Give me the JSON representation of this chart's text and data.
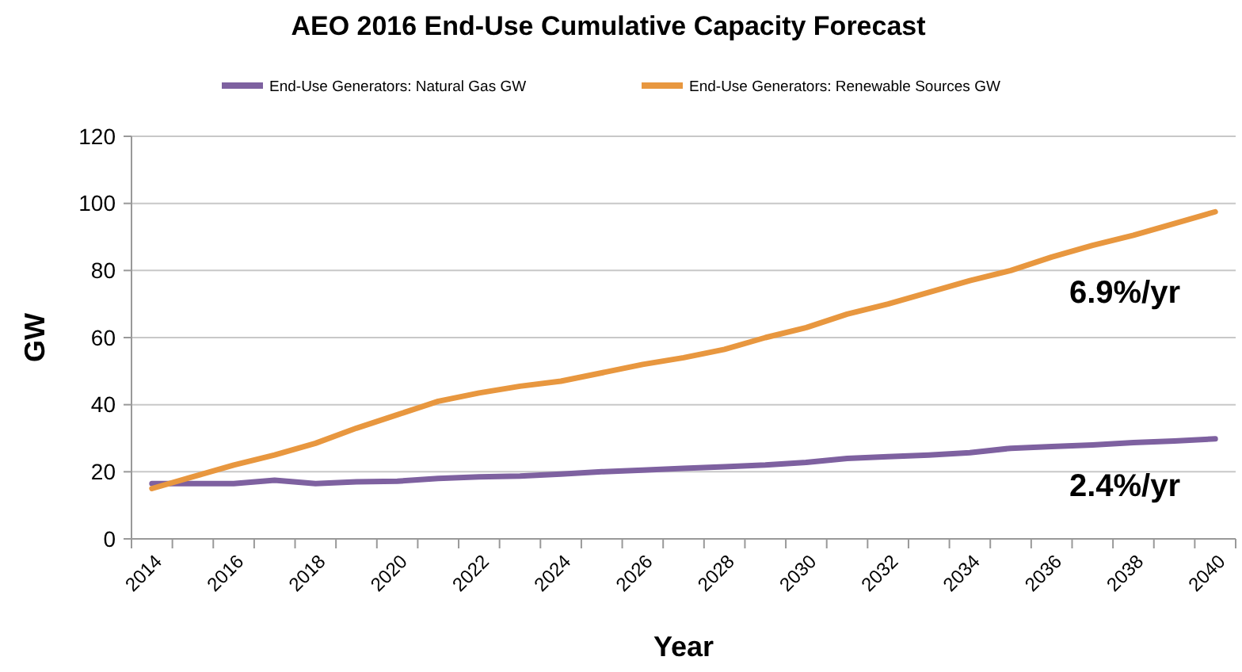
{
  "chart_data": {
    "type": "line",
    "title": "AEO 2016 End-Use Cumulative Capacity Forecast",
    "xlabel": "Year",
    "ylabel": "GW",
    "categories": [
      "2014",
      null,
      "2016",
      null,
      "2018",
      null,
      "2020",
      null,
      "2022",
      null,
      "2024",
      null,
      "2026",
      null,
      "2028",
      null,
      "2030",
      null,
      "2032",
      null,
      "2034",
      null,
      "2036",
      null,
      "2038",
      null,
      "2040"
    ],
    "series": [
      {
        "name": "End-Use Generators: Natural Gas GW",
        "color": "#7e61a0",
        "values": [
          16.5,
          16.5,
          16.5,
          17.5,
          16.5,
          17,
          17.2,
          18,
          18.5,
          18.7,
          19.3,
          20,
          20.5,
          21,
          21.5,
          22,
          22.8,
          24,
          24.5,
          25,
          25.7,
          27,
          27.5,
          28,
          28.7,
          29.2,
          29.8
        ]
      },
      {
        "name": "End-Use Generators: Renewable Sources GW",
        "color": "#e8973f",
        "values": [
          15,
          18.5,
          22,
          25,
          28.5,
          33,
          37,
          41,
          43.5,
          45.5,
          47,
          49.5,
          52,
          54,
          56.5,
          60,
          63,
          67,
          70,
          73.5,
          77,
          80,
          84,
          87.5,
          90.5,
          94,
          97.5
        ]
      }
    ],
    "ylim": [
      0,
      120
    ],
    "yticks": [
      0,
      20,
      40,
      60,
      80,
      100,
      120
    ],
    "grid": "y",
    "legend": "top",
    "marker": "none",
    "line_style": "solid",
    "annotations": [
      "6.9%/yr",
      "2.4%/yr"
    ]
  }
}
